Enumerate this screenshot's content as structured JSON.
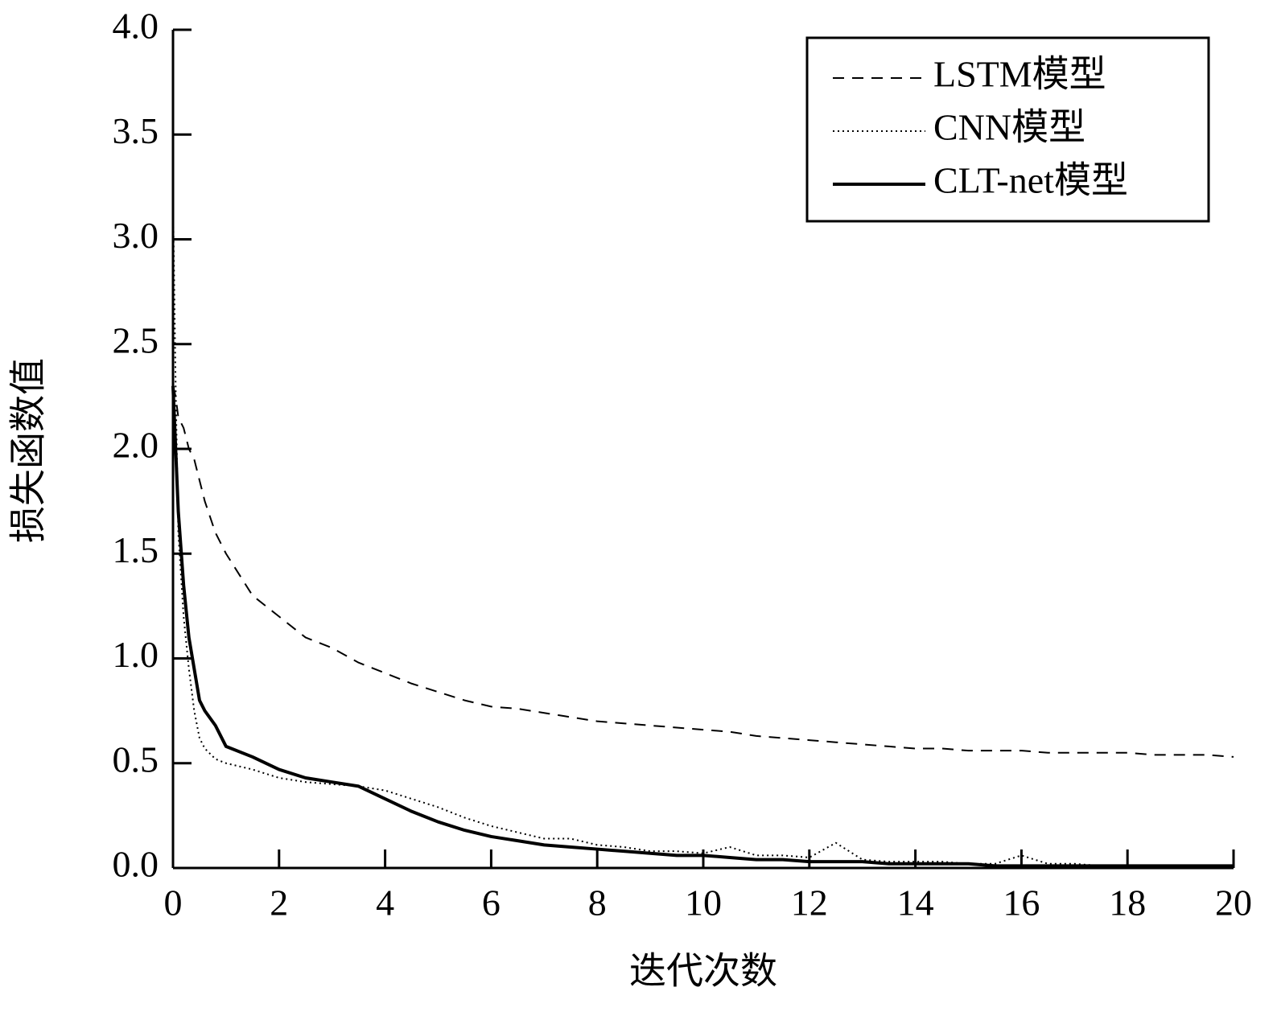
{
  "chart_data": {
    "type": "line",
    "x_label": "迭代次数",
    "y_label": "损失函数值",
    "x": [
      0,
      0.05,
      0.1,
      0.2,
      0.3,
      0.4,
      0.5,
      0.6,
      0.8,
      1,
      1.5,
      2,
      2.5,
      3,
      3.5,
      4,
      4.5,
      5,
      5.5,
      6,
      6.5,
      7,
      7.5,
      8,
      8.5,
      9,
      9.5,
      10,
      10.5,
      11,
      11.5,
      12,
      12.5,
      13,
      13.5,
      14,
      14.5,
      15,
      15.5,
      16,
      16.5,
      17,
      17.5,
      18,
      18.5,
      19,
      19.5,
      20
    ],
    "series": [
      {
        "name": "LSTM模型",
        "color": "#000000",
        "dash": "dashed",
        "values": [
          2.3,
          2.25,
          2.15,
          2.1,
          2.0,
          1.95,
          1.85,
          1.75,
          1.6,
          1.5,
          1.3,
          1.2,
          1.1,
          1.05,
          0.98,
          0.93,
          0.88,
          0.84,
          0.8,
          0.77,
          0.76,
          0.74,
          0.72,
          0.7,
          0.69,
          0.68,
          0.67,
          0.66,
          0.65,
          0.63,
          0.62,
          0.61,
          0.6,
          0.59,
          0.58,
          0.57,
          0.57,
          0.56,
          0.56,
          0.56,
          0.55,
          0.55,
          0.55,
          0.55,
          0.54,
          0.54,
          0.54,
          0.53
        ]
      },
      {
        "name": "CNN模型",
        "color": "#000000",
        "dash": "dotted",
        "values": [
          3.2,
          2.3,
          1.6,
          1.2,
          0.95,
          0.75,
          0.62,
          0.57,
          0.52,
          0.5,
          0.47,
          0.43,
          0.41,
          0.4,
          0.39,
          0.37,
          0.33,
          0.29,
          0.24,
          0.2,
          0.17,
          0.14,
          0.14,
          0.11,
          0.1,
          0.08,
          0.08,
          0.07,
          0.1,
          0.06,
          0.06,
          0.05,
          0.12,
          0.04,
          0.03,
          0.03,
          0.03,
          0.02,
          0.02,
          0.06,
          0.02,
          0.02,
          0.01,
          0.01,
          0.01,
          0.01,
          0.01,
          0.01
        ]
      },
      {
        "name": "CLT-net模型",
        "color": "#000000",
        "dash": "solid",
        "values": [
          2.3,
          2.0,
          1.7,
          1.35,
          1.1,
          0.95,
          0.8,
          0.75,
          0.68,
          0.58,
          0.53,
          0.47,
          0.43,
          0.41,
          0.39,
          0.33,
          0.27,
          0.22,
          0.18,
          0.15,
          0.13,
          0.11,
          0.1,
          0.09,
          0.08,
          0.07,
          0.06,
          0.06,
          0.05,
          0.04,
          0.04,
          0.03,
          0.03,
          0.03,
          0.02,
          0.02,
          0.02,
          0.02,
          0.01,
          0.01,
          0.01,
          0.01,
          0.01,
          0.01,
          0.01,
          0.01,
          0.01,
          0.01
        ]
      }
    ],
    "xlim": [
      0,
      20
    ],
    "xticks": [
      0,
      2,
      4,
      6,
      8,
      10,
      12,
      14,
      16,
      18,
      20
    ],
    "ylim": [
      0,
      4
    ],
    "yticks": [
      {
        "value": 0,
        "label": "0.0"
      },
      0.5,
      {
        "value": 1,
        "label": "1.0"
      },
      1.5,
      {
        "value": 2,
        "label": "2.0"
      },
      2.5,
      {
        "value": 3,
        "label": "3.0"
      },
      3.5,
      {
        "value": 4,
        "label": "4.0"
      }
    ],
    "legend": "upper-right",
    "grid": false
  }
}
